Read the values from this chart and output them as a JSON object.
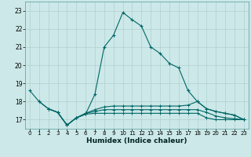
{
  "xlabel": "Humidex (Indice chaleur)",
  "bg_color": "#cce8e8",
  "grid_color": "#b0d0d0",
  "line_color": "#006666",
  "xlim": [
    -0.5,
    23.5
  ],
  "ylim": [
    16.5,
    23.5
  ],
  "yticks": [
    17,
    18,
    19,
    20,
    21,
    22,
    23
  ],
  "xticks": [
    0,
    1,
    2,
    3,
    4,
    5,
    6,
    7,
    8,
    9,
    10,
    11,
    12,
    13,
    14,
    15,
    16,
    17,
    18,
    19,
    20,
    21,
    22,
    23
  ],
  "line1_x": [
    0,
    1,
    2,
    3,
    4,
    5,
    6,
    7,
    8,
    9,
    10,
    11,
    12,
    13,
    14,
    15,
    16,
    17,
    18,
    19,
    20,
    21,
    22,
    23
  ],
  "line1_y": [
    18.6,
    18.0,
    17.6,
    17.4,
    16.7,
    17.1,
    17.3,
    18.4,
    21.0,
    21.65,
    22.9,
    22.5,
    22.15,
    21.0,
    20.65,
    20.1,
    19.85,
    18.6,
    18.0,
    17.6,
    17.45,
    17.35,
    17.25,
    17.0
  ],
  "line2_x": [
    1,
    2,
    3,
    4,
    5,
    6,
    7,
    8,
    9,
    10,
    11,
    12,
    13,
    14,
    15,
    16,
    17,
    18,
    19,
    20,
    21,
    22,
    23
  ],
  "line2_y": [
    18.0,
    17.6,
    17.4,
    16.7,
    17.1,
    17.35,
    17.55,
    17.7,
    17.75,
    17.75,
    17.75,
    17.75,
    17.75,
    17.75,
    17.75,
    17.75,
    17.8,
    18.0,
    17.6,
    17.45,
    17.35,
    17.25,
    17.0
  ],
  "line3_x": [
    2,
    3,
    4,
    5,
    6,
    7,
    8,
    9,
    10,
    11,
    12,
    13,
    14,
    15,
    16,
    17,
    18,
    19,
    20,
    21,
    22,
    23
  ],
  "line3_y": [
    17.6,
    17.4,
    16.7,
    17.1,
    17.35,
    17.45,
    17.55,
    17.55,
    17.55,
    17.55,
    17.55,
    17.55,
    17.55,
    17.55,
    17.55,
    17.55,
    17.55,
    17.4,
    17.2,
    17.1,
    17.05,
    17.0
  ],
  "line4_x": [
    2,
    3,
    4,
    5,
    6,
    7,
    8,
    9,
    10,
    11,
    12,
    13,
    14,
    15,
    16,
    17,
    18,
    19,
    20,
    21,
    22,
    23
  ],
  "line4_y": [
    17.6,
    17.4,
    16.7,
    17.1,
    17.3,
    17.35,
    17.35,
    17.35,
    17.35,
    17.35,
    17.35,
    17.35,
    17.35,
    17.35,
    17.35,
    17.35,
    17.35,
    17.1,
    17.0,
    17.0,
    17.0,
    17.0
  ]
}
